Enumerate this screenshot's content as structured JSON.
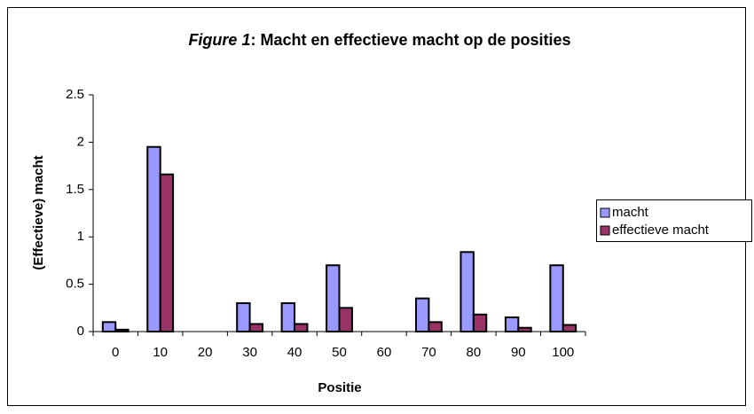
{
  "chart_data": {
    "type": "bar",
    "title": [
      "Figure 1",
      ": Macht en effectieve macht op de posities"
    ],
    "x_label": "Positie",
    "y_label": "(Effectieve) macht",
    "categories": [
      "0",
      "10",
      "20",
      "30",
      "40",
      "50",
      "60",
      "70",
      "80",
      "90",
      "100"
    ],
    "series": [
      {
        "name": "macht",
        "color": "#9999ff",
        "values": [
          0.1,
          1.95,
          0,
          0.3,
          0.3,
          0.7,
          0,
          0.35,
          0.84,
          0.15,
          0.7
        ]
      },
      {
        "name": "effectieve macht",
        "color": "#993366",
        "values": [
          0.02,
          1.66,
          0,
          0.08,
          0.08,
          0.25,
          0,
          0.1,
          0.18,
          0.04,
          0.07
        ]
      }
    ],
    "ylim": [
      0,
      2.5
    ],
    "yticks": [
      0,
      0.5,
      1,
      1.5,
      2,
      2.5
    ],
    "grid": false,
    "legend": "right"
  }
}
